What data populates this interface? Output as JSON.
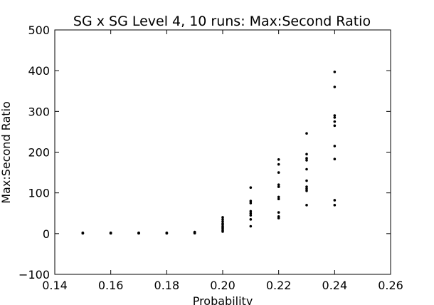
{
  "chart_data": {
    "type": "scatter",
    "title": "SG x SG Level 4, 10 runs: Max:Second Ratio",
    "xlabel": "Probability",
    "ylabel": "Max:Second Ratio",
    "xlim": [
      0.14,
      0.26
    ],
    "ylim": [
      -100,
      500
    ],
    "xticks": [
      0.14,
      0.16,
      0.18,
      0.2,
      0.22,
      0.24,
      0.26
    ],
    "xtick_labels": [
      "0.14",
      "0.16",
      "0.18",
      "0.20",
      "0.22",
      "0.24",
      "0.26"
    ],
    "yticks": [
      -100,
      0,
      100,
      200,
      300,
      400,
      500
    ],
    "ytick_labels": [
      "−100",
      "0",
      "100",
      "200",
      "300",
      "400",
      "500"
    ],
    "grid": false,
    "marker_color": "#000000",
    "series": [
      {
        "points": [
          [
            0.15,
            1
          ],
          [
            0.15,
            1.5
          ],
          [
            0.15,
            2
          ],
          [
            0.15,
            1.2
          ],
          [
            0.15,
            0.8
          ],
          [
            0.16,
            1
          ],
          [
            0.16,
            1.5
          ],
          [
            0.16,
            2
          ],
          [
            0.16,
            1.2
          ],
          [
            0.16,
            0.8
          ],
          [
            0.17,
            1
          ],
          [
            0.17,
            1.5
          ],
          [
            0.17,
            2
          ],
          [
            0.17,
            1.2
          ],
          [
            0.17,
            0.8
          ],
          [
            0.18,
            1
          ],
          [
            0.18,
            1.5
          ],
          [
            0.18,
            2
          ],
          [
            0.18,
            1.2
          ],
          [
            0.18,
            0.8
          ],
          [
            0.19,
            1
          ],
          [
            0.19,
            2
          ],
          [
            0.19,
            3
          ],
          [
            0.19,
            4
          ],
          [
            0.19,
            1.5
          ],
          [
            0.2,
            5
          ],
          [
            0.2,
            8
          ],
          [
            0.2,
            12
          ],
          [
            0.2,
            15
          ],
          [
            0.2,
            18
          ],
          [
            0.2,
            22
          ],
          [
            0.2,
            25
          ],
          [
            0.2,
            30
          ],
          [
            0.2,
            35
          ],
          [
            0.2,
            40
          ],
          [
            0.21,
            18
          ],
          [
            0.21,
            35
          ],
          [
            0.21,
            45
          ],
          [
            0.21,
            50
          ],
          [
            0.21,
            55
          ],
          [
            0.21,
            75
          ],
          [
            0.21,
            80
          ],
          [
            0.21,
            113
          ],
          [
            0.22,
            38
          ],
          [
            0.22,
            42
          ],
          [
            0.22,
            52
          ],
          [
            0.22,
            85
          ],
          [
            0.22,
            90
          ],
          [
            0.22,
            115
          ],
          [
            0.22,
            120
          ],
          [
            0.22,
            150
          ],
          [
            0.22,
            170
          ],
          [
            0.22,
            182
          ],
          [
            0.23,
            70
          ],
          [
            0.23,
            105
          ],
          [
            0.23,
            110
          ],
          [
            0.23,
            115
          ],
          [
            0.23,
            130
          ],
          [
            0.23,
            158
          ],
          [
            0.23,
            180
          ],
          [
            0.23,
            185
          ],
          [
            0.23,
            195
          ],
          [
            0.23,
            246
          ],
          [
            0.24,
            70
          ],
          [
            0.24,
            82
          ],
          [
            0.24,
            183
          ],
          [
            0.24,
            215
          ],
          [
            0.24,
            265
          ],
          [
            0.24,
            275
          ],
          [
            0.24,
            285
          ],
          [
            0.24,
            290
          ],
          [
            0.24,
            360
          ],
          [
            0.24,
            397
          ]
        ]
      }
    ]
  }
}
